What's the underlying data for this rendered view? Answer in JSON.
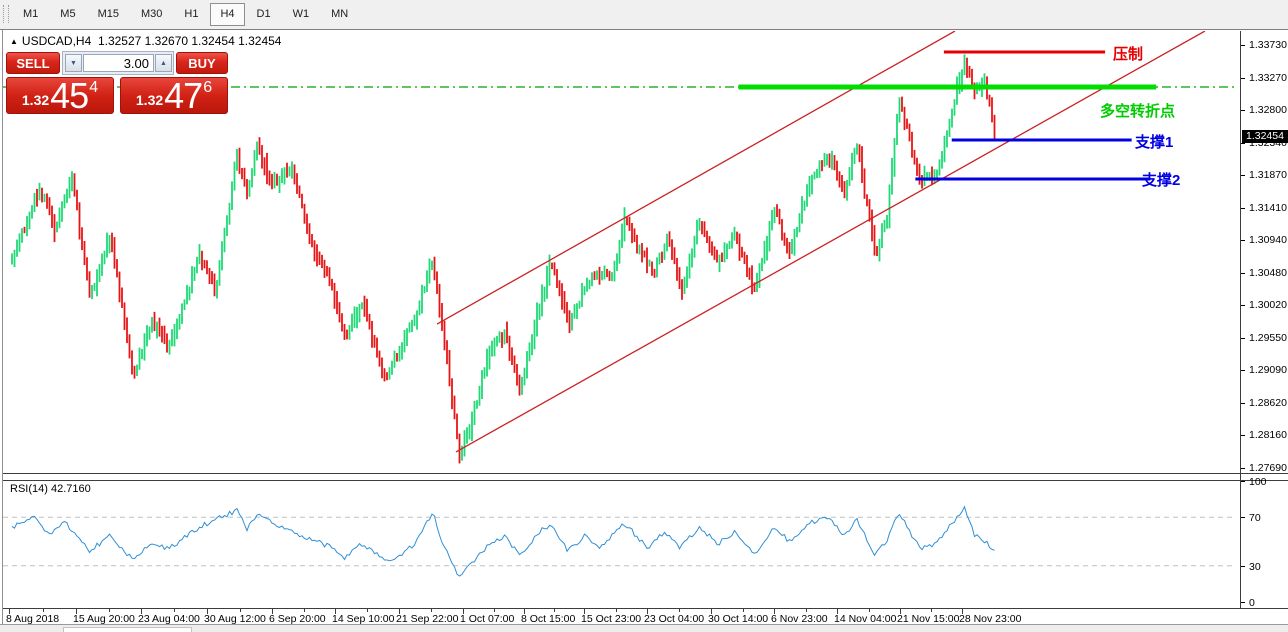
{
  "toolbar": {
    "timeframes": [
      "M1",
      "M5",
      "M15",
      "M30",
      "H1",
      "H4",
      "D1",
      "W1",
      "MN"
    ],
    "active": "H4"
  },
  "trade_panel": {
    "collapse_icon": "▲",
    "symbol": "USDCAD,H4",
    "ohlc_text": "1.32527 1.32670 1.32454 1.32454",
    "sell_label": "SELL",
    "buy_label": "BUY",
    "lot_value": "3.00",
    "bid": {
      "prefix": "1.32",
      "big": "45",
      "sup": "4"
    },
    "ask": {
      "prefix": "1.32",
      "big": "47",
      "sup": "6"
    }
  },
  "annotations": {
    "resistance": "压制",
    "pivot": "多空转折点",
    "support1": "支撑1",
    "support2": "支撑2"
  },
  "price_axis": {
    "labels": [
      "1.33730",
      "1.33270",
      "1.32800",
      "1.32340",
      "1.31870",
      "1.31410",
      "1.30940",
      "1.30480",
      "1.30020",
      "1.29550",
      "1.29090",
      "1.28620",
      "1.28160",
      "1.27690"
    ],
    "current": "1.32454"
  },
  "rsi_panel": {
    "label": "RSI(14) 42.7160",
    "axis_labels": [
      "100",
      "70",
      "30",
      "0"
    ]
  },
  "time_axis": {
    "labels": [
      "8 Aug 2018",
      "15 Aug 20:00",
      "23 Aug 04:00",
      "30 Aug 12:00",
      "6 Sep 20:00",
      "14 Sep 10:00",
      "21 Sep 22:00",
      "1 Oct 07:00",
      "8 Oct 15:00",
      "15 Oct 23:00",
      "23 Oct 04:00",
      "30 Oct 14:00",
      "6 Nov 23:00",
      "14 Nov 04:00",
      "21 Nov 15:00",
      "28 Nov 23:00"
    ]
  },
  "colors": {
    "up": "#1fd977",
    "down": "#e81414",
    "channel": "#cc2222",
    "resistance_line": "#e60000",
    "support_line": "#0000e0",
    "zone_line": "#00dd00",
    "zone_dash": "#00a000",
    "rsi_line": "#2f8fd5",
    "rsi_guide": "#c0c0c0",
    "tag_bg": "#000000"
  },
  "chart_data": {
    "type": "candlestick",
    "symbol": "USDCAD",
    "timeframe": "H4",
    "open": 1.32527,
    "high": 1.3267,
    "low": 1.32454,
    "close": 1.32454,
    "bid": 1.32454,
    "ask": 1.32476,
    "rsi_period": 14,
    "rsi_value": 42.716,
    "price_range": [
      1.2769,
      1.3373
    ],
    "rsi_range": [
      0,
      100
    ],
    "rsi_guides": [
      70,
      30
    ],
    "levels": {
      "resistance": {
        "price": 1.33645,
        "t1": 0.948,
        "t2": 1.112
      },
      "zone": {
        "price": 1.3315,
        "t1": 0.739,
        "t2": 1.164
      },
      "support1": {
        "price": 1.324,
        "t1": 0.956,
        "t2": 1.139
      },
      "support2": {
        "price": 1.31848,
        "t1": 0.919,
        "t2": 1.158
      }
    },
    "channel": {
      "upper": [
        [
          0.4324,
          1.29795
        ],
        [
          0.9593,
          1.33942
        ]
      ],
      "lower": [
        [
          0.4517,
          1.27984
        ],
        [
          1.2136,
          1.33942
        ]
      ]
    },
    "price_anchors": [
      [
        0,
        1.30687
      ],
      [
        0.028,
        1.31748
      ],
      [
        0.044,
        1.31112
      ],
      [
        0.061,
        1.31918
      ],
      [
        0.079,
        1.30191
      ],
      [
        0.1,
        1.31041
      ],
      [
        0.123,
        1.29059
      ],
      [
        0.142,
        1.29866
      ],
      [
        0.159,
        1.29413
      ],
      [
        0.191,
        1.30758
      ],
      [
        0.207,
        1.30262
      ],
      [
        0.229,
        1.32173
      ],
      [
        0.239,
        1.31607
      ],
      [
        0.25,
        1.32357
      ],
      [
        0.262,
        1.31748
      ],
      [
        0.285,
        1.31989
      ],
      [
        0.303,
        1.3097
      ],
      [
        0.323,
        1.30404
      ],
      [
        0.339,
        1.29625
      ],
      [
        0.356,
        1.30121
      ],
      [
        0.379,
        1.28988
      ],
      [
        0.395,
        1.29484
      ],
      [
        0.41,
        1.29866
      ],
      [
        0.428,
        1.30715
      ],
      [
        0.44,
        1.29554
      ],
      [
        0.456,
        1.27927
      ],
      [
        0.468,
        1.28422
      ],
      [
        0.486,
        1.29413
      ],
      [
        0.502,
        1.29696
      ],
      [
        0.517,
        1.28847
      ],
      [
        0.535,
        1.29979
      ],
      [
        0.549,
        1.30659
      ],
      [
        0.568,
        1.29767
      ],
      [
        0.581,
        1.30262
      ],
      [
        0.596,
        1.30517
      ],
      [
        0.61,
        1.30474
      ],
      [
        0.624,
        1.31281
      ],
      [
        0.639,
        1.30828
      ],
      [
        0.654,
        1.30517
      ],
      [
        0.667,
        1.30998
      ],
      [
        0.682,
        1.30262
      ],
      [
        0.7,
        1.31253
      ],
      [
        0.718,
        1.30659
      ],
      [
        0.735,
        1.31112
      ],
      [
        0.756,
        1.30262
      ],
      [
        0.776,
        1.31437
      ],
      [
        0.791,
        1.308
      ],
      [
        0.814,
        1.31862
      ],
      [
        0.83,
        1.32216
      ],
      [
        0.847,
        1.31678
      ],
      [
        0.86,
        1.32329
      ],
      [
        0.878,
        1.30758
      ],
      [
        0.891,
        1.31366
      ],
      [
        0.903,
        1.33037
      ],
      [
        0.916,
        1.32216
      ],
      [
        0.926,
        1.31819
      ],
      [
        0.939,
        1.31862
      ],
      [
        0.954,
        1.3264
      ],
      [
        0.97,
        1.33546
      ],
      [
        0.98,
        1.33065
      ],
      [
        0.99,
        1.33235
      ],
      [
        1,
        1.3247
      ]
    ],
    "rsi_anchors": [
      [
        0,
        62
      ],
      [
        0.023,
        70
      ],
      [
        0.039,
        55
      ],
      [
        0.054,
        66
      ],
      [
        0.079,
        42
      ],
      [
        0.1,
        55
      ],
      [
        0.123,
        35
      ],
      [
        0.142,
        50
      ],
      [
        0.159,
        44
      ],
      [
        0.191,
        62
      ],
      [
        0.229,
        76
      ],
      [
        0.239,
        60
      ],
      [
        0.25,
        74
      ],
      [
        0.273,
        62
      ],
      [
        0.293,
        55
      ],
      [
        0.323,
        46
      ],
      [
        0.339,
        36
      ],
      [
        0.356,
        48
      ],
      [
        0.385,
        32
      ],
      [
        0.41,
        48
      ],
      [
        0.428,
        74
      ],
      [
        0.44,
        45
      ],
      [
        0.456,
        20
      ],
      [
        0.471,
        35
      ],
      [
        0.486,
        48
      ],
      [
        0.502,
        55
      ],
      [
        0.517,
        38
      ],
      [
        0.537,
        58
      ],
      [
        0.549,
        65
      ],
      [
        0.566,
        42
      ],
      [
        0.583,
        55
      ],
      [
        0.598,
        44
      ],
      [
        0.624,
        65
      ],
      [
        0.647,
        44
      ],
      [
        0.664,
        58
      ],
      [
        0.68,
        45
      ],
      [
        0.7,
        62
      ],
      [
        0.718,
        48
      ],
      [
        0.735,
        58
      ],
      [
        0.756,
        40
      ],
      [
        0.776,
        62
      ],
      [
        0.791,
        50
      ],
      [
        0.814,
        66
      ],
      [
        0.83,
        70
      ],
      [
        0.847,
        55
      ],
      [
        0.86,
        68
      ],
      [
        0.878,
        38
      ],
      [
        0.891,
        52
      ],
      [
        0.903,
        74
      ],
      [
        0.916,
        55
      ],
      [
        0.926,
        45
      ],
      [
        0.939,
        48
      ],
      [
        0.954,
        62
      ],
      [
        0.97,
        78
      ],
      [
        0.98,
        55
      ],
      [
        0.99,
        50
      ],
      [
        1,
        42.716
      ]
    ]
  }
}
